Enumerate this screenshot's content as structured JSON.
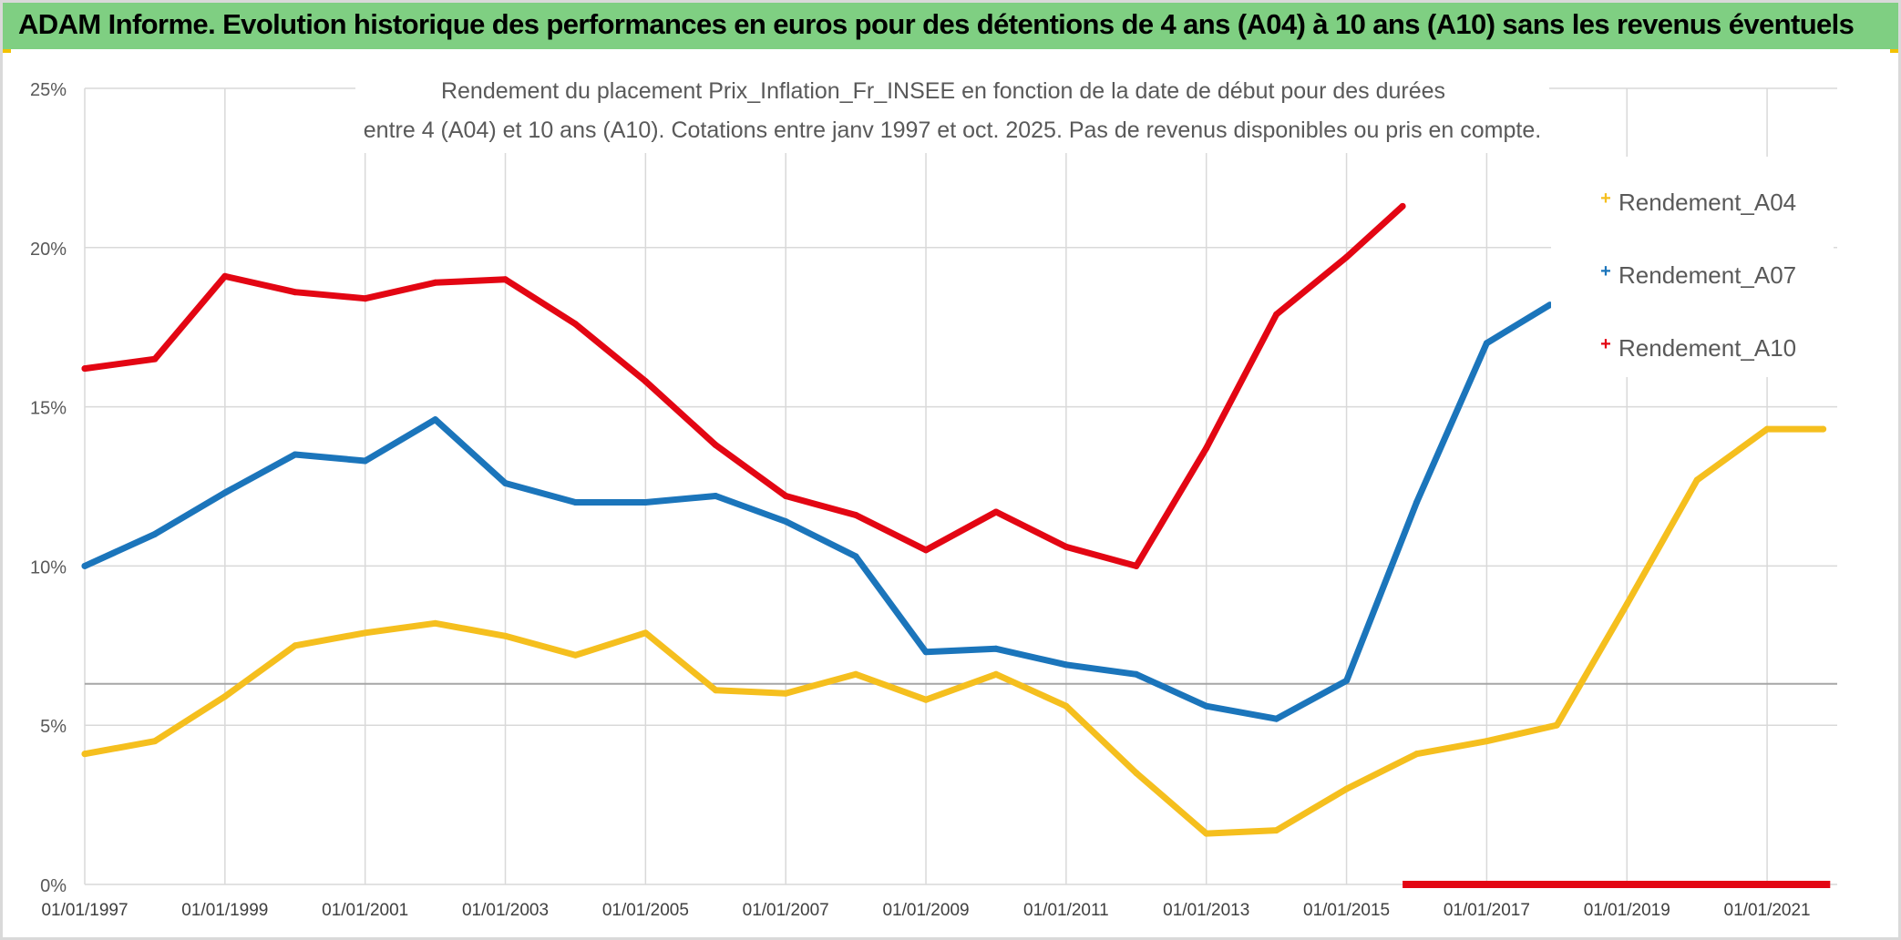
{
  "banner": {
    "title": "ADAM Informe. Evolution historique des performances en euros pour des détentions de 4 ans (A04) à 10 ans (A10) sans les revenus éventuels"
  },
  "colors": {
    "banner_bg": "#7fcf82",
    "grid": "#d9d9d9",
    "reference_line": "#a6a6a6",
    "Rendement_A04": "#f5bf1e",
    "Rendement_A07": "#1b75bb",
    "Rendement_A10": "#e30613"
  },
  "chart_data": {
    "type": "line",
    "title_line1": "Rendement du placement Prix_Inflation_Fr_INSEE en fonction de la date de début pour des durées",
    "title_line2": "entre 4 (A04) et 10 ans (A10). Cotations entre janv 1997 et oct. 2025. Pas de revenus disponibles ou pris en compte.",
    "xlabel": "",
    "ylabel": "",
    "xlim": [
      1997.0,
      2022.0
    ],
    "ylim": [
      0,
      25
    ],
    "grid": true,
    "legend_position": "right",
    "x_ticks": [
      {
        "value": 1997,
        "label": "01/01/1997"
      },
      {
        "value": 1999,
        "label": "01/01/1999"
      },
      {
        "value": 2001,
        "label": "01/01/2001"
      },
      {
        "value": 2003,
        "label": "01/01/2003"
      },
      {
        "value": 2005,
        "label": "01/01/2005"
      },
      {
        "value": 2007,
        "label": "01/01/2007"
      },
      {
        "value": 2009,
        "label": "01/01/2009"
      },
      {
        "value": 2011,
        "label": "01/01/2011"
      },
      {
        "value": 2013,
        "label": "01/01/2013"
      },
      {
        "value": 2015,
        "label": "01/01/2015"
      },
      {
        "value": 2017,
        "label": "01/01/2017"
      },
      {
        "value": 2019,
        "label": "01/01/2019"
      },
      {
        "value": 2021,
        "label": "01/01/2021"
      }
    ],
    "y_ticks": [
      {
        "value": 0,
        "label": "0%"
      },
      {
        "value": 5,
        "label": "5%"
      },
      {
        "value": 10,
        "label": "10%"
      },
      {
        "value": 15,
        "label": "15%"
      },
      {
        "value": 20,
        "label": "20%"
      },
      {
        "value": 25,
        "label": "25%"
      }
    ],
    "reference_line_value": 6.3,
    "series": [
      {
        "name": "Rendement_A04",
        "points": [
          [
            1997.0,
            4.1
          ],
          [
            1998.0,
            4.5
          ],
          [
            1999.0,
            5.9
          ],
          [
            2000.0,
            7.5
          ],
          [
            2001.0,
            7.9
          ],
          [
            2002.0,
            8.2
          ],
          [
            2003.0,
            7.8
          ],
          [
            2004.0,
            7.2
          ],
          [
            2005.0,
            7.9
          ],
          [
            2006.0,
            6.1
          ],
          [
            2007.0,
            6.0
          ],
          [
            2008.0,
            6.6
          ],
          [
            2009.0,
            5.8
          ],
          [
            2010.0,
            6.6
          ],
          [
            2011.0,
            5.6
          ],
          [
            2012.0,
            3.5
          ],
          [
            2013.0,
            1.6
          ],
          [
            2014.0,
            1.7
          ],
          [
            2015.0,
            3.0
          ],
          [
            2016.0,
            4.1
          ],
          [
            2017.0,
            4.5
          ],
          [
            2018.0,
            5.0
          ],
          [
            2019.0,
            8.8
          ],
          [
            2020.0,
            12.7
          ],
          [
            2021.0,
            14.3
          ],
          [
            2021.8,
            14.3
          ]
        ]
      },
      {
        "name": "Rendement_A07",
        "points": [
          [
            1997.0,
            10.0
          ],
          [
            1998.0,
            11.0
          ],
          [
            1999.0,
            12.3
          ],
          [
            2000.0,
            13.5
          ],
          [
            2001.0,
            13.3
          ],
          [
            2002.0,
            14.6
          ],
          [
            2003.0,
            12.6
          ],
          [
            2004.0,
            12.0
          ],
          [
            2005.0,
            12.0
          ],
          [
            2006.0,
            12.2
          ],
          [
            2007.0,
            11.4
          ],
          [
            2008.0,
            10.3
          ],
          [
            2009.0,
            7.3
          ],
          [
            2010.0,
            7.4
          ],
          [
            2011.0,
            6.9
          ],
          [
            2012.0,
            6.6
          ],
          [
            2013.0,
            5.6
          ],
          [
            2014.0,
            5.2
          ],
          [
            2015.0,
            6.4
          ],
          [
            2016.0,
            12.0
          ],
          [
            2017.0,
            17.0
          ],
          [
            2017.9,
            18.2
          ]
        ]
      },
      {
        "name": "Rendement_A10",
        "points": [
          [
            1997.0,
            16.2
          ],
          [
            1998.0,
            16.5
          ],
          [
            1999.0,
            19.1
          ],
          [
            2000.0,
            18.6
          ],
          [
            2001.0,
            18.4
          ],
          [
            2002.0,
            18.9
          ],
          [
            2003.0,
            19.0
          ],
          [
            2004.0,
            17.6
          ],
          [
            2005.0,
            15.8
          ],
          [
            2006.0,
            13.8
          ],
          [
            2007.0,
            12.2
          ],
          [
            2008.0,
            11.6
          ],
          [
            2009.0,
            10.5
          ],
          [
            2010.0,
            11.7
          ],
          [
            2011.0,
            10.6
          ],
          [
            2012.0,
            10.0
          ],
          [
            2013.0,
            13.7
          ],
          [
            2014.0,
            17.9
          ],
          [
            2015.0,
            19.7
          ],
          [
            2015.8,
            21.3
          ]
        ],
        "zero_segment": [
          [
            2015.8,
            0.0
          ],
          [
            2021.9,
            0.0
          ]
        ]
      }
    ]
  }
}
